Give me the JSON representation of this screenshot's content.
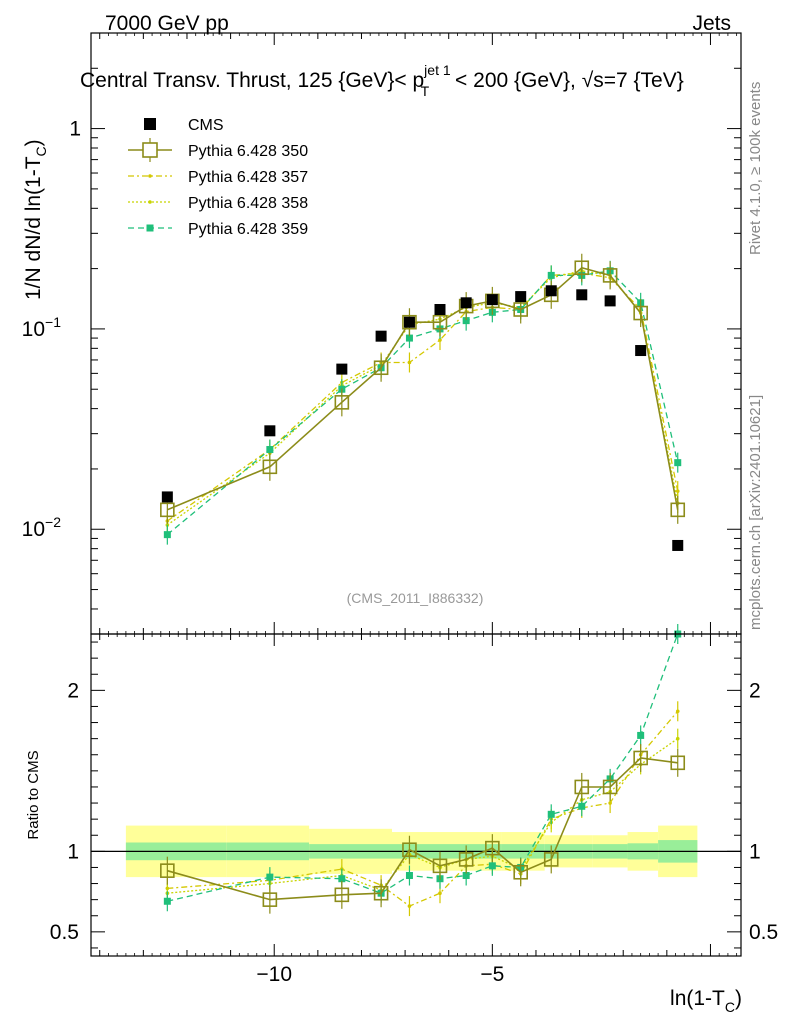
{
  "header": {
    "left": "7000 GeV pp",
    "right": "Jets",
    "title_part1": "Central Transv. Thrust, 125 {GeV}< p",
    "title_sup": "jet 1",
    "title_sub": "T",
    "title_part2": " < 200 {GeV}, ",
    "title_sqrt": "√s",
    "title_part3": "=7 {TeV}"
  },
  "side_labels": {
    "rivet": "Rivet 4.1.0, ≥ 100k events",
    "mcplots": "mcplots.cern.ch [arXiv:2401.10621]"
  },
  "watermark": "(CMS_2011_I886332)",
  "colors": {
    "cms": "#000000",
    "p350": "#8c8c1a",
    "p357": "#d4c800",
    "p358": "#c8d400",
    "p359": "#1fbf7a",
    "band_inner": "#99ee99",
    "band_outer": "#ffff99"
  },
  "chart_data": [
    {
      "type": "line",
      "panel": "main",
      "ylabel_main": "1/N   dN/d ln(1-T",
      "ylabel_sub": "C",
      "ylabel_end": ")",
      "ylog": true,
      "ylim": [
        0.003,
        3.0
      ],
      "xlim": [
        -14.2,
        0.7
      ],
      "yticks": [
        {
          "value": 1,
          "label": "1"
        },
        {
          "value": 0.1,
          "label": "10",
          "exp": "−1"
        },
        {
          "value": 0.01,
          "label": "10",
          "exp": "−2"
        }
      ],
      "legend": {
        "position": "top-left",
        "entries": [
          {
            "key": "cms",
            "label": "CMS"
          },
          {
            "key": "p350",
            "label": "Pythia 6.428 350"
          },
          {
            "key": "p357",
            "label": "Pythia 6.428 357"
          },
          {
            "key": "p358",
            "label": "Pythia 6.428 358"
          },
          {
            "key": "p359",
            "label": "Pythia 6.428 359"
          }
        ]
      },
      "x": [
        -12.45,
        -10.1,
        -8.45,
        -7.55,
        -6.9,
        -6.2,
        -5.6,
        -5.0,
        -4.35,
        -3.65,
        -2.95,
        -2.3,
        -1.6,
        -0.75
      ],
      "series": [
        {
          "key": "cms",
          "name": "CMS",
          "values": [
            0.0145,
            0.031,
            0.063,
            0.092,
            0.108,
            0.125,
            0.135,
            0.14,
            0.145,
            0.155,
            0.148,
            0.138,
            0.078,
            0.0083
          ]
        },
        {
          "key": "p350",
          "name": "Pythia 6.428 350",
          "values": [
            0.0125,
            0.0205,
            0.043,
            0.064,
            0.108,
            0.108,
            0.13,
            0.138,
            0.125,
            0.148,
            0.202,
            0.185,
            0.12,
            0.0125
          ]
        },
        {
          "key": "p357",
          "name": "Pythia 6.428 357",
          "values": [
            0.011,
            0.025,
            0.054,
            0.068,
            0.068,
            0.088,
            0.122,
            0.128,
            0.125,
            0.185,
            0.19,
            0.18,
            0.125,
            0.0155
          ]
        },
        {
          "key": "p358",
          "name": "Pythia 6.428 358",
          "values": [
            0.0105,
            0.024,
            0.052,
            0.066,
            0.105,
            0.112,
            0.128,
            0.135,
            0.128,
            0.18,
            0.195,
            0.185,
            0.12,
            0.0135
          ]
        },
        {
          "key": "p359",
          "name": "Pythia 6.428 359",
          "values": [
            0.0094,
            0.025,
            0.05,
            0.064,
            0.09,
            0.1,
            0.11,
            0.121,
            0.125,
            0.185,
            0.185,
            0.195,
            0.135,
            0.0215
          ]
        }
      ]
    },
    {
      "type": "line",
      "panel": "ratio",
      "ylabel": "Ratio to CMS",
      "xlabel_main": "ln(1-T",
      "xlabel_sub": "C",
      "xlabel_end": ")",
      "ylim": [
        0.35,
        2.35
      ],
      "xlim": [
        -14.2,
        0.7
      ],
      "xticks": [
        {
          "value": -10,
          "label": "−10"
        },
        {
          "value": -5,
          "label": "−5"
        }
      ],
      "yticks": [
        {
          "value": 2,
          "label": "2"
        },
        {
          "value": 1,
          "label": "1"
        },
        {
          "value": 0.5,
          "label": "0.5"
        }
      ],
      "band_edges": [
        -13.4,
        -11.1,
        -9.2,
        -7.3,
        -4.8,
        -3.8,
        -2.7,
        -1.9,
        -1.2,
        -0.3
      ],
      "band_inner": [
        0.055,
        0.055,
        0.045,
        0.045,
        0.045,
        0.045,
        0.045,
        0.05,
        0.07
      ],
      "band_outer": [
        0.16,
        0.16,
        0.14,
        0.12,
        0.12,
        0.1,
        0.1,
        0.12,
        0.16
      ],
      "x": [
        -12.45,
        -10.1,
        -8.45,
        -7.55,
        -6.9,
        -6.2,
        -5.6,
        -5.0,
        -4.35,
        -3.65,
        -2.95,
        -2.3,
        -1.6,
        -0.75
      ],
      "series": [
        {
          "key": "p350",
          "name": "Pythia 6.428 350",
          "values": [
            0.88,
            0.7,
            0.73,
            0.74,
            1.01,
            0.91,
            0.95,
            1.02,
            0.87,
            0.95,
            1.4,
            1.4,
            1.58,
            1.55
          ]
        },
        {
          "key": "p357",
          "name": "Pythia 6.428 357",
          "values": [
            0.77,
            0.82,
            0.89,
            0.79,
            0.66,
            0.74,
            0.91,
            0.92,
            0.86,
            1.2,
            1.27,
            1.3,
            1.6,
            1.87
          ]
        },
        {
          "key": "p358",
          "name": "Pythia 6.428 358",
          "values": [
            0.74,
            0.8,
            0.85,
            0.76,
            0.98,
            0.9,
            0.95,
            0.97,
            0.89,
            1.18,
            1.32,
            1.37,
            1.54,
            1.7
          ]
        },
        {
          "key": "p359",
          "name": "Pythia 6.428 359",
          "values": [
            0.69,
            0.84,
            0.83,
            0.74,
            0.85,
            0.83,
            0.85,
            0.91,
            0.9,
            1.23,
            1.28,
            1.45,
            1.72,
            2.35
          ]
        }
      ]
    }
  ]
}
